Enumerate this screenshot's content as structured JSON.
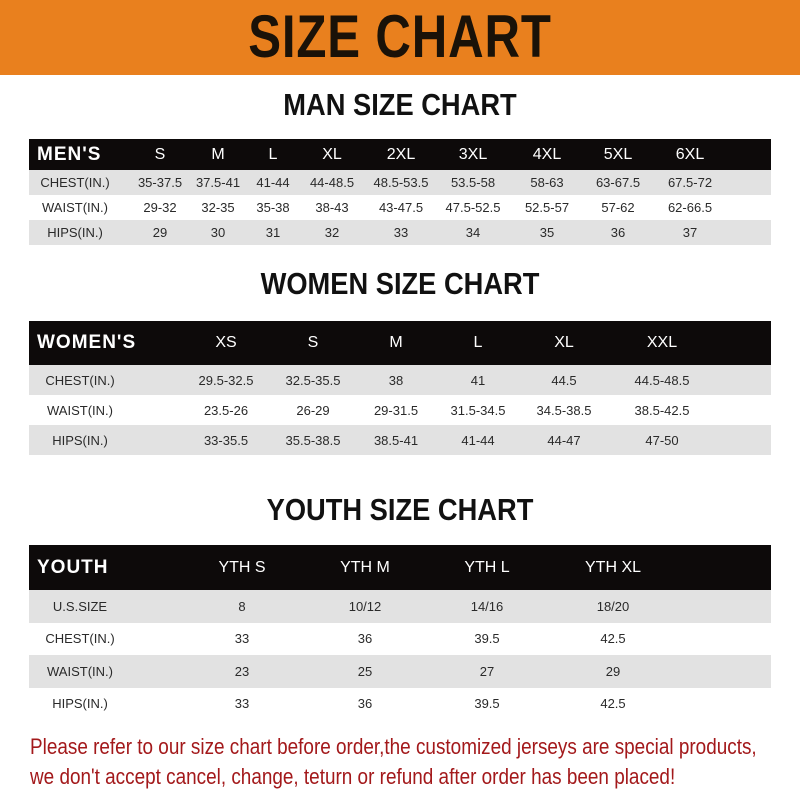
{
  "banner": {
    "title": "SIZE CHART",
    "color": "#e9801e"
  },
  "men": {
    "title": "MAN SIZE CHART",
    "header": [
      "MEN'S",
      "S",
      "M",
      "L",
      "XL",
      "2XL",
      "3XL",
      "4XL",
      "5XL",
      "6XL"
    ],
    "rows": [
      [
        "CHEST(IN.)",
        "35-37.5",
        "37.5-41",
        "41-44",
        "44-48.5",
        "48.5-53.5",
        "53.5-58",
        "58-63",
        "63-67.5",
        "67.5-72"
      ],
      [
        "WAIST(IN.)",
        "29-32",
        "32-35",
        "35-38",
        "38-43",
        "43-47.5",
        "47.5-52.5",
        "52.5-57",
        "57-62",
        "62-66.5"
      ],
      [
        "HIPS(IN.)",
        "29",
        "30",
        "31",
        "32",
        "33",
        "34",
        "35",
        "36",
        "37"
      ]
    ]
  },
  "women": {
    "title": "WOMEN SIZE CHART",
    "header": [
      "WOMEN'S",
      "XS",
      "S",
      "M",
      "L",
      "XL",
      "XXL"
    ],
    "rows": [
      [
        "CHEST(IN.)",
        "29.5-32.5",
        "32.5-35.5",
        "38",
        "41",
        "44.5",
        "44.5-48.5"
      ],
      [
        "WAIST(IN.)",
        "23.5-26",
        "26-29",
        "29-31.5",
        "31.5-34.5",
        "34.5-38.5",
        "38.5-42.5"
      ],
      [
        "HIPS(IN.)",
        "33-35.5",
        "35.5-38.5",
        "38.5-41",
        "41-44",
        "44-47",
        "47-50"
      ]
    ]
  },
  "youth": {
    "title": "YOUTH SIZE CHART",
    "header": [
      "YOUTH",
      "YTH S",
      "YTH M",
      "YTH L",
      "YTH XL"
    ],
    "rows": [
      [
        "U.S.SIZE",
        "8",
        "10/12",
        "14/16",
        "18/20"
      ],
      [
        "CHEST(IN.)",
        "33",
        "36",
        "39.5",
        "42.5"
      ],
      [
        "WAIST(IN.)",
        "23",
        "25",
        "27",
        "29"
      ],
      [
        "HIPS(IN.)",
        "33",
        "36",
        "39.5",
        "42.5"
      ]
    ]
  },
  "notice": {
    "line1": "Please refer to our size chart before order,the customized jerseys are special products,",
    "line2": "we don't accept cancel, change, teturn or refund after order has been placed!",
    "color": "#a3191b"
  }
}
